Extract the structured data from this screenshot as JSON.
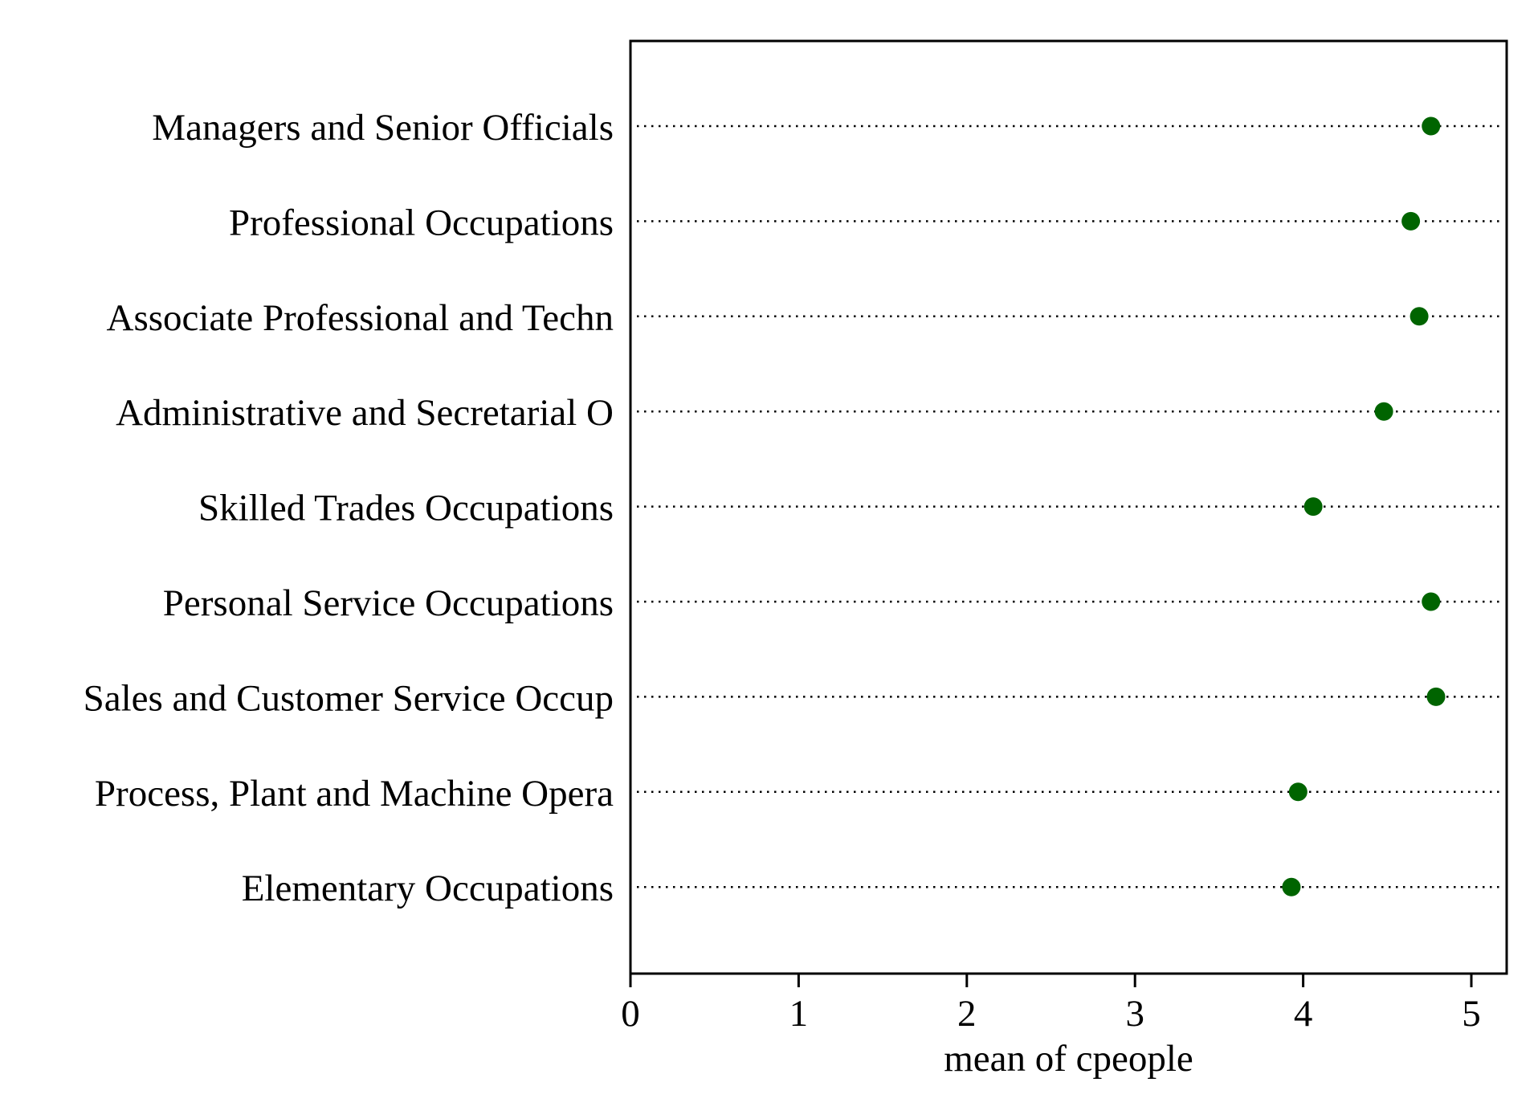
{
  "chart_data": {
    "type": "scatter",
    "subtype": "dot-plot",
    "orientation": "horizontal",
    "categories": [
      "Managers and Senior Officials",
      "Professional Occupations",
      "Associate Professional and Techn",
      "Administrative and Secretarial O",
      "Skilled Trades Occupations",
      "Personal Service Occupations",
      "Sales and Customer Service Occup",
      "Process, Plant and Machine Opera",
      "Elementary Occupations"
    ],
    "values": [
      4.76,
      4.64,
      4.69,
      4.48,
      4.06,
      4.76,
      4.79,
      3.97,
      3.93
    ],
    "xlabel": "mean of cpeople",
    "ylabel": "",
    "xlim": [
      0,
      5.2
    ],
    "xticks": [
      "0",
      "1",
      "2",
      "3",
      "4",
      "5"
    ],
    "grid": false,
    "guide_lines": "dotted",
    "marker_color": "#006400",
    "axis_color": "#000000"
  }
}
